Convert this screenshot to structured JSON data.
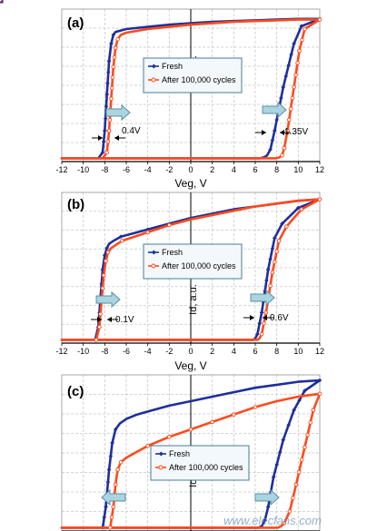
{
  "colors": {
    "fresh": "#1f2f9a",
    "cycled": "#ff4a1c",
    "arrow_fill": "#a9d4e0",
    "arrow_stroke": "#5b8fa3",
    "legend_bg": "#f2f8fb",
    "legend_border": "#4a7d93"
  },
  "panels": [
    {
      "label": "(a)",
      "xlabel": "Veg, V",
      "ylabel": "Id, a.u.",
      "annotations": [
        "0.4V",
        "1.35V"
      ],
      "legend": [
        "Fresh",
        "After 100,000 cycles"
      ]
    },
    {
      "label": "(b)",
      "xlabel": "Veg, V",
      "ylabel": "Id, a.u.",
      "annotations": [
        "0.1V",
        "0.6V"
      ],
      "legend": [
        "Fresh",
        "After 100,000 cycles"
      ]
    },
    {
      "label": "(c)",
      "xlabel": "",
      "ylabel": "Id, a.u.",
      "annotations": [],
      "legend": [
        "Fresh",
        "After 100,000 cycles"
      ]
    }
  ],
  "watermark": "www.elecfans.com",
  "chart_data": [
    {
      "type": "line",
      "xlim": [
        -12,
        12
      ],
      "x_ticks": [
        "-12",
        "-10",
        "-8",
        "-6",
        "-4",
        "-2",
        "0",
        "2",
        "4",
        "6",
        "8",
        "10",
        "12"
      ],
      "xlabel": "Veg, V",
      "ylabel": "Id, a.u.",
      "series": [
        {
          "name": "Fresh",
          "color": "#1f2f9a",
          "x": [
            -12,
            -8.6,
            -8.2,
            -8.0,
            -7.8,
            -7.6,
            -7.4,
            -7.2,
            -7.0,
            -6.0,
            -4,
            -2,
            0,
            2,
            4,
            6,
            8,
            10,
            12,
            12,
            10.3,
            9.6,
            8.6,
            7.8,
            7.4,
            7.1,
            6.9,
            6.7,
            6.5,
            6.3,
            4,
            0,
            -4,
            -8,
            -12
          ],
          "y": [
            0.01,
            0.01,
            0.05,
            0.2,
            0.45,
            0.68,
            0.8,
            0.86,
            0.88,
            0.9,
            0.915,
            0.93,
            0.94,
            0.95,
            0.955,
            0.96,
            0.965,
            0.97,
            0.97,
            0.97,
            0.92,
            0.8,
            0.5,
            0.2,
            0.07,
            0.03,
            0.02,
            0.015,
            0.01,
            0.01,
            0.01,
            0.01,
            0.01,
            0.01,
            0.01
          ]
        },
        {
          "name": "After 100,000 cycles",
          "color": "#ff4a1c",
          "x": [
            -12,
            -8.2,
            -7.8,
            -7.6,
            -7.4,
            -7.2,
            -7.0,
            -6.8,
            -6.5,
            -6.0,
            -4,
            -2,
            0,
            2,
            4,
            6,
            8,
            10,
            12,
            12,
            10.6,
            10.1,
            9.6,
            9.0,
            8.7,
            8.5,
            8.2,
            7.9,
            7.6,
            4,
            0,
            -4,
            -8,
            -12
          ],
          "y": [
            0.01,
            0.01,
            0.05,
            0.2,
            0.42,
            0.64,
            0.77,
            0.83,
            0.86,
            0.875,
            0.9,
            0.915,
            0.93,
            0.94,
            0.95,
            0.955,
            0.96,
            0.965,
            0.965,
            0.965,
            0.9,
            0.75,
            0.5,
            0.2,
            0.08,
            0.03,
            0.015,
            0.01,
            0.01,
            0.01,
            0.01,
            0.01,
            0.01,
            0.01
          ]
        }
      ]
    },
    {
      "type": "line",
      "xlim": [
        -12,
        12
      ],
      "x_ticks": [
        "-12",
        "-10",
        "-8",
        "-6",
        "-4",
        "-2",
        "0",
        "2",
        "4",
        "6",
        "8",
        "10",
        "12"
      ],
      "xlabel": "Veg, V",
      "ylabel": "Id, a.u.",
      "series": [
        {
          "name": "Fresh",
          "color": "#1f2f9a",
          "x": [
            -12,
            -8.9,
            -8.6,
            -8.4,
            -8.2,
            -8.0,
            -7.8,
            -7.6,
            -7.2,
            -6.5,
            -4,
            -2,
            0,
            2,
            4,
            6,
            8,
            10,
            12,
            12,
            10,
            8.5,
            7.8,
            7.2,
            6.6,
            6.2,
            6.0,
            5.8,
            5.6,
            4,
            0,
            -4,
            -8,
            -12
          ],
          "y": [
            0.01,
            0.01,
            0.1,
            0.3,
            0.5,
            0.6,
            0.65,
            0.68,
            0.7,
            0.73,
            0.78,
            0.82,
            0.86,
            0.89,
            0.92,
            0.94,
            0.96,
            0.98,
            0.99,
            0.99,
            0.93,
            0.82,
            0.72,
            0.5,
            0.2,
            0.05,
            0.02,
            0.01,
            0.01,
            0.01,
            0.01,
            0.01,
            0.01,
            0.01
          ]
        },
        {
          "name": "After 100,000 cycles",
          "color": "#ff4a1c",
          "x": [
            -12,
            -8.8,
            -8.5,
            -8.3,
            -8.1,
            -7.9,
            -7.7,
            -7.4,
            -7.0,
            -6.4,
            -4,
            -2,
            0,
            2,
            4,
            6,
            8,
            10,
            12,
            12,
            10.3,
            8.9,
            8.2,
            7.6,
            7.0,
            6.6,
            6.4,
            6.2,
            6.0,
            4,
            0,
            -4,
            -8,
            -12
          ],
          "y": [
            0.01,
            0.01,
            0.1,
            0.28,
            0.46,
            0.56,
            0.62,
            0.65,
            0.67,
            0.7,
            0.76,
            0.81,
            0.85,
            0.88,
            0.91,
            0.94,
            0.96,
            0.98,
            0.99,
            0.99,
            0.92,
            0.8,
            0.7,
            0.48,
            0.2,
            0.05,
            0.02,
            0.01,
            0.01,
            0.01,
            0.01,
            0.01,
            0.01,
            0.01
          ]
        }
      ]
    },
    {
      "type": "line",
      "xlim": [
        -12,
        12
      ],
      "x_ticks": [],
      "xlabel": "",
      "ylabel": "Id, a.u.",
      "series": [
        {
          "name": "Fresh",
          "color": "#1f2f9a",
          "x": [
            -12,
            -8.2,
            -7.9,
            -7.6,
            -7.3,
            -7.0,
            -6.6,
            -6.0,
            -5.0,
            -4,
            -2,
            0,
            2,
            4,
            6,
            8,
            10,
            12,
            12,
            10.6,
            9.6,
            8.6,
            7.7,
            7.2,
            6.9,
            6.6,
            6.3,
            6.0,
            4,
            0,
            -4,
            -8,
            -12
          ],
          "y": [
            0.01,
            0.01,
            0.15,
            0.4,
            0.58,
            0.67,
            0.71,
            0.74,
            0.77,
            0.79,
            0.83,
            0.86,
            0.89,
            0.92,
            0.95,
            0.97,
            0.99,
            1.0,
            1.0,
            0.93,
            0.8,
            0.6,
            0.35,
            0.15,
            0.06,
            0.02,
            0.01,
            0.01,
            0.01,
            0.01,
            0.01,
            0.01,
            0.01
          ]
        },
        {
          "name": "After 100,000 cycles",
          "color": "#ff4a1c",
          "x": [
            -12,
            -7.5,
            -7.2,
            -7.0,
            -6.8,
            -6.5,
            -6.0,
            -5.0,
            -4,
            -2,
            0,
            2,
            4,
            6,
            8,
            10,
            12,
            12,
            11.4,
            10.6,
            9.8,
            9.2,
            8.7,
            8.4,
            8.1,
            7.8,
            4,
            0,
            -4,
            -8,
            -12
          ],
          "y": [
            0.01,
            0.01,
            0.15,
            0.3,
            0.4,
            0.45,
            0.48,
            0.52,
            0.56,
            0.62,
            0.67,
            0.72,
            0.77,
            0.82,
            0.86,
            0.89,
            0.91,
            0.91,
            0.8,
            0.55,
            0.3,
            0.12,
            0.04,
            0.02,
            0.01,
            0.01,
            0.01,
            0.01,
            0.01,
            0.01,
            0.01
          ]
        }
      ]
    }
  ]
}
